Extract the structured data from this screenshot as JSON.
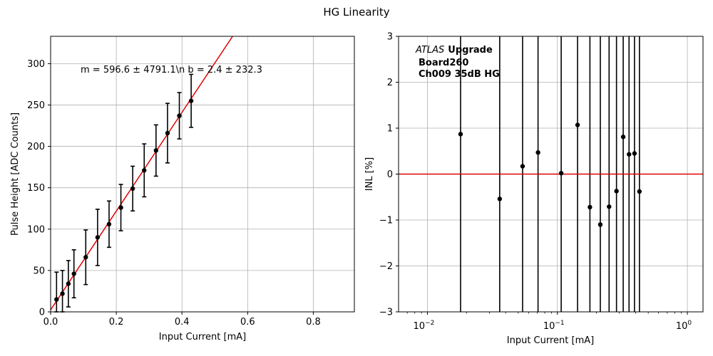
{
  "suptitle": "HG Linearity",
  "chart_data": [
    {
      "type": "scatter",
      "title": "",
      "xlabel": "Input Current [mA]",
      "ylabel": "Pulse Height [ADC Counts]",
      "xlim": [
        0,
        0.925
      ],
      "ylim": [
        0,
        333
      ],
      "xticks": [
        0.0,
        0.2,
        0.4,
        0.6,
        0.8
      ],
      "xtick_labels": [
        "0.0",
        "0.2",
        "0.4",
        "0.6",
        "0.8"
      ],
      "yticks": [
        0,
        50,
        100,
        150,
        200,
        250,
        300
      ],
      "ytick_labels": [
        "0",
        "50",
        "100",
        "150",
        "200",
        "250",
        "300"
      ],
      "grid": true,
      "annotation": "m = 596.6 ± 4791.1\\n b = 2.4 ± 232.3",
      "fit_line": {
        "slope": 596.6,
        "intercept": 2.4,
        "color": "#e00000"
      },
      "series": [
        {
          "x": [
            0.018,
            0.036,
            0.054,
            0.071,
            0.107,
            0.143,
            0.178,
            0.214,
            0.25,
            0.285,
            0.321,
            0.356,
            0.392,
            0.428
          ],
          "y": [
            15,
            22,
            34,
            46,
            66,
            90,
            106,
            126,
            149,
            171,
            195,
            216,
            237,
            255
          ],
          "yerr": [
            33,
            28,
            28,
            29,
            33,
            34,
            28,
            28,
            27,
            32,
            31,
            36,
            28,
            32
          ],
          "color": "#000000"
        }
      ]
    },
    {
      "type": "scatter",
      "title": "",
      "xlabel": "Input Current [mA]",
      "ylabel": "INL [%]",
      "xscale": "log",
      "xlim": [
        0.006,
        1.32
      ],
      "ylim": [
        -3,
        3
      ],
      "xticks": [
        0.01,
        0.1,
        1
      ],
      "xtick_labels": [
        "10",
        "10",
        "10"
      ],
      "xtick_exponents": [
        "−2",
        "−1",
        "0"
      ],
      "yticks": [
        -3,
        -2,
        -1,
        0,
        1,
        2,
        3
      ],
      "ytick_labels": [
        "−3",
        "−2",
        "−1",
        "0",
        "1",
        "2",
        "3"
      ],
      "grid": true,
      "reference_line": {
        "y": 0,
        "color": "#e00000"
      },
      "annotation": {
        "italic": "ATLAS",
        "bold_lines": [
          "Upgrade",
          "Board260",
          "Ch009 35dB HG"
        ]
      },
      "series": [
        {
          "x": [
            0.018,
            0.036,
            0.054,
            0.071,
            0.107,
            0.143,
            0.178,
            0.214,
            0.25,
            0.285,
            0.321,
            0.356,
            0.392,
            0.428
          ],
          "y": [
            0.87,
            -0.54,
            0.17,
            0.47,
            0.02,
            1.07,
            -0.72,
            -1.1,
            -0.71,
            -0.37,
            0.81,
            0.43,
            0.45,
            -0.38
          ],
          "error_bars": "exceed axis range",
          "color": "#000000"
        }
      ]
    }
  ]
}
